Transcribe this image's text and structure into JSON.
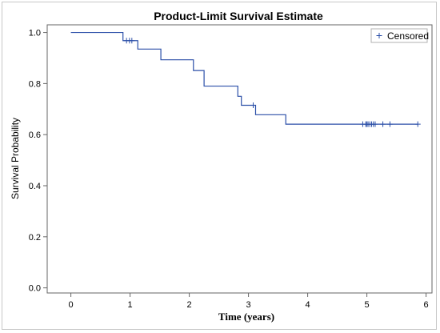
{
  "chart_data": {
    "type": "line",
    "title": "Product-Limit Survival Estimate",
    "xlabel": "Time (years)",
    "ylabel": "Survival Probability",
    "xlim": [
      -0.4,
      6.1
    ],
    "ylim": [
      -0.02,
      1.03
    ],
    "x_ticks": [
      0,
      1,
      2,
      3,
      4,
      5,
      6
    ],
    "y_ticks": [
      0.0,
      0.2,
      0.4,
      0.6,
      0.8,
      1.0
    ],
    "x_tick_labels": [
      "0",
      "1",
      "2",
      "3",
      "4",
      "5",
      "6"
    ],
    "y_tick_labels": [
      "0.0",
      "0.2",
      "0.4",
      "0.6",
      "0.8",
      "1.0"
    ],
    "grid": false,
    "legend": {
      "position": "top-right",
      "entries": [
        {
          "marker": "+",
          "label": "Censored"
        }
      ]
    },
    "series_color": "#2b4fa8",
    "step_curve": {
      "time": [
        0,
        0.88,
        1.13,
        1.52,
        2.05,
        2.07,
        2.25,
        2.82,
        2.88,
        3.12,
        3.63,
        5.86
      ],
      "survival": [
        1.0,
        0.968,
        0.935,
        0.893,
        0.893,
        0.851,
        0.79,
        0.75,
        0.715,
        0.678,
        0.641,
        0.641
      ]
    },
    "censored": [
      {
        "time": 0.94,
        "survival": 0.968
      },
      {
        "time": 0.99,
        "survival": 0.968
      },
      {
        "time": 1.03,
        "survival": 0.968
      },
      {
        "time": 3.08,
        "survival": 0.715
      },
      {
        "time": 4.93,
        "survival": 0.641
      },
      {
        "time": 4.98,
        "survival": 0.641
      },
      {
        "time": 5.0,
        "survival": 0.641
      },
      {
        "time": 5.02,
        "survival": 0.641
      },
      {
        "time": 5.05,
        "survival": 0.641
      },
      {
        "time": 5.08,
        "survival": 0.641
      },
      {
        "time": 5.11,
        "survival": 0.641
      },
      {
        "time": 5.14,
        "survival": 0.641
      },
      {
        "time": 5.27,
        "survival": 0.641
      },
      {
        "time": 5.39,
        "survival": 0.641
      },
      {
        "time": 5.86,
        "survival": 0.641
      }
    ]
  }
}
